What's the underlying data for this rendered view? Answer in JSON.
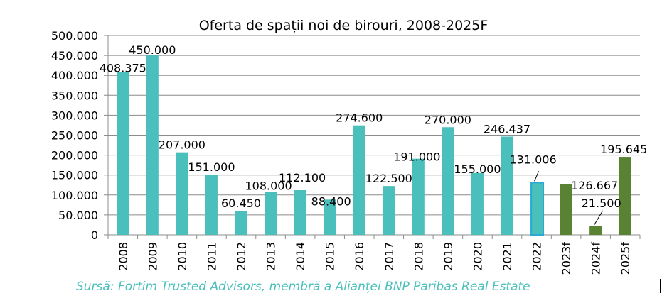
{
  "chart_data": {
    "type": "bar",
    "title": "Oferta de spații noi de birouri, 2008-2025F",
    "xlabel": "",
    "ylabel": "",
    "ylim": [
      0,
      500000
    ],
    "yticks": [
      0,
      50000,
      100000,
      150000,
      200000,
      250000,
      300000,
      350000,
      400000,
      450000,
      500000
    ],
    "ytick_labels": [
      "0",
      "50.000",
      "100.000",
      "150.000",
      "200.000",
      "250.000",
      "300.000",
      "350.000",
      "400.000",
      "450.000",
      "500.000"
    ],
    "grid": true,
    "legend": "none",
    "categories": [
      "2008",
      "2009",
      "2010",
      "2011",
      "2012",
      "2013",
      "2014",
      "2015",
      "2016",
      "2017",
      "2018",
      "2019",
      "2020",
      "2021",
      "2022",
      "2023f",
      "2024f",
      "2025f"
    ],
    "values": [
      408375,
      450000,
      207000,
      151000,
      60450,
      108000,
      112100,
      88400,
      274600,
      122500,
      191000,
      270000,
      155000,
      246437,
      131006,
      126667,
      21500,
      195645
    ],
    "data_labels": [
      "408.375",
      "450.000",
      "207.000",
      "151.000",
      "60.450",
      "108.000",
      "112.100",
      "88.400",
      "274.600",
      "122.500",
      "191.000",
      "270.000",
      "155.000",
      "246.437",
      "131.006",
      "126.667",
      "21.500",
      "195.645"
    ],
    "bar_kinds": [
      "actual",
      "actual",
      "actual",
      "actual",
      "actual",
      "actual",
      "actual",
      "actual",
      "actual",
      "actual",
      "actual",
      "actual",
      "actual",
      "actual",
      "highlighted",
      "forecast",
      "forecast",
      "forecast"
    ],
    "colors": {
      "actual": "#4bbfbb",
      "highlighted": "#4bbfbb",
      "highlighted_border": "#29a9d6",
      "forecast": "#5a8233",
      "grid": "#8c8c8c",
      "source_text": "#4bbfbb"
    }
  },
  "source": "Sursă: Fortim Trusted Advisors, membră a Alianței BNP Paribas Real Estate"
}
